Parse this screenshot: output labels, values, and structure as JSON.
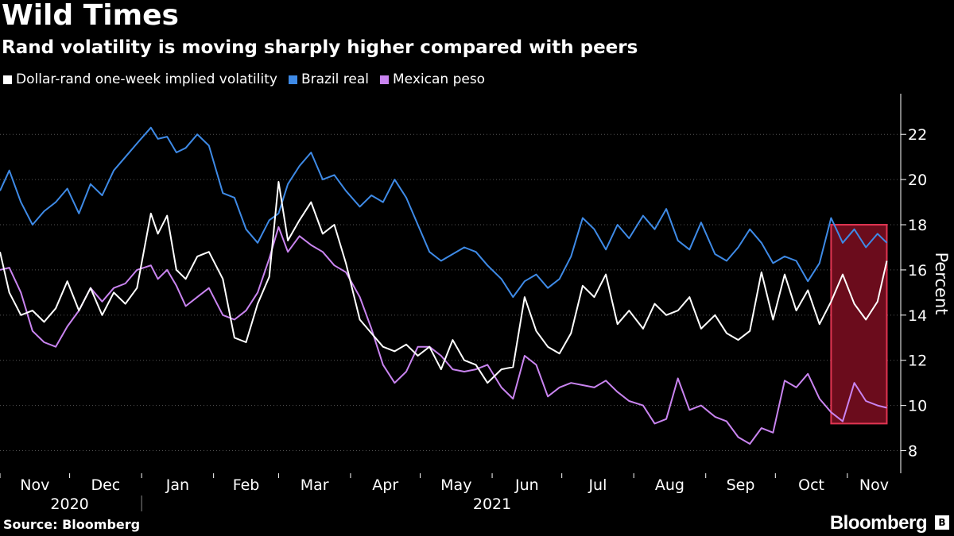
{
  "title": "Wild Times",
  "subtitle": "Rand volatility is moving sharply higher compared with peers",
  "source": "Source: Bloomberg",
  "brand": "Bloomberg",
  "chart_data": {
    "type": "line",
    "ylabel": "Percent",
    "ylim": [
      7,
      23.8
    ],
    "yticks": [
      8,
      10,
      12,
      14,
      16,
      18,
      20,
      22
    ],
    "y_axis_side": "right",
    "grid": "horizontal dashed",
    "legend_placement": "top-left",
    "x_range": [
      "2020-11-01",
      "2021-11-24"
    ],
    "months": [
      {
        "label": "Nov",
        "start": "2020-11-01"
      },
      {
        "label": "Dec",
        "start": "2020-12-01"
      },
      {
        "label": "Jan",
        "start": "2021-01-01"
      },
      {
        "label": "Feb",
        "start": "2021-02-01"
      },
      {
        "label": "Mar",
        "start": "2021-03-01"
      },
      {
        "label": "Apr",
        "start": "2021-04-01"
      },
      {
        "label": "May",
        "start": "2021-05-01"
      },
      {
        "label": "Jun",
        "start": "2021-06-01"
      },
      {
        "label": "Jul",
        "start": "2021-07-01"
      },
      {
        "label": "Aug",
        "start": "2021-08-01"
      },
      {
        "label": "Sep",
        "start": "2021-09-01"
      },
      {
        "label": "Oct",
        "start": "2021-10-01"
      },
      {
        "label": "Nov",
        "start": "2021-11-01"
      }
    ],
    "years": [
      {
        "label": "2020",
        "center": "2020-12-01"
      },
      {
        "label": "2021",
        "center": "2021-06-01"
      }
    ],
    "highlight": {
      "x0": "2021-10-25",
      "x1": "2021-11-18",
      "y0": 9.2,
      "y1": 18.0
    },
    "series": [
      {
        "name": "Dollar-rand one-week implied volatility",
        "color": "#ffffff",
        "x": [
          "2020-11-01",
          "2020-11-05",
          "2020-11-10",
          "2020-11-15",
          "2020-11-20",
          "2020-11-25",
          "2020-11-30",
          "2020-12-05",
          "2020-12-10",
          "2020-12-15",
          "2020-12-20",
          "2020-12-25",
          "2020-12-30",
          "2021-01-05",
          "2021-01-08",
          "2021-01-12",
          "2021-01-16",
          "2021-01-20",
          "2021-01-25",
          "2021-01-30",
          "2021-02-05",
          "2021-02-10",
          "2021-02-15",
          "2021-02-20",
          "2021-02-25",
          "2021-03-01",
          "2021-03-05",
          "2021-03-10",
          "2021-03-15",
          "2021-03-20",
          "2021-03-25",
          "2021-03-30",
          "2021-04-05",
          "2021-04-10",
          "2021-04-15",
          "2021-04-20",
          "2021-04-25",
          "2021-04-30",
          "2021-05-05",
          "2021-05-10",
          "2021-05-15",
          "2021-05-20",
          "2021-05-25",
          "2021-05-30",
          "2021-06-05",
          "2021-06-10",
          "2021-06-15",
          "2021-06-20",
          "2021-06-25",
          "2021-06-30",
          "2021-07-05",
          "2021-07-10",
          "2021-07-15",
          "2021-07-20",
          "2021-07-25",
          "2021-07-30",
          "2021-08-05",
          "2021-08-10",
          "2021-08-15",
          "2021-08-20",
          "2021-08-25",
          "2021-08-30",
          "2021-09-05",
          "2021-09-10",
          "2021-09-15",
          "2021-09-20",
          "2021-09-25",
          "2021-09-30",
          "2021-10-05",
          "2021-10-10",
          "2021-10-15",
          "2021-10-20",
          "2021-10-25",
          "2021-10-30",
          "2021-11-04",
          "2021-11-09",
          "2021-11-14",
          "2021-11-18"
        ],
        "values": [
          16.8,
          15.0,
          14.0,
          14.2,
          13.7,
          14.3,
          15.5,
          14.2,
          15.2,
          14.0,
          15.0,
          14.5,
          15.2,
          18.5,
          17.6,
          18.4,
          16.0,
          15.6,
          16.6,
          16.8,
          15.6,
          13.0,
          12.8,
          14.5,
          15.7,
          19.9,
          17.3,
          18.2,
          19.0,
          17.6,
          18.0,
          16.3,
          13.8,
          13.2,
          12.6,
          12.4,
          12.7,
          12.2,
          12.6,
          11.6,
          12.9,
          12.0,
          11.8,
          11.0,
          11.6,
          11.7,
          14.8,
          13.3,
          12.6,
          12.3,
          13.2,
          15.3,
          14.8,
          15.8,
          13.6,
          14.2,
          13.4,
          14.5,
          14.0,
          14.2,
          14.8,
          13.4,
          14.0,
          13.2,
          12.9,
          13.3,
          15.9,
          13.8,
          15.8,
          14.2,
          15.1,
          13.6,
          14.6,
          15.8,
          14.5,
          13.8,
          14.6,
          16.4
        ]
      },
      {
        "name": "Brazil real",
        "color": "#3e8ae6",
        "x": [
          "2020-11-01",
          "2020-11-05",
          "2020-11-10",
          "2020-11-15",
          "2020-11-20",
          "2020-11-25",
          "2020-11-30",
          "2020-12-05",
          "2020-12-10",
          "2020-12-15",
          "2020-12-20",
          "2020-12-25",
          "2020-12-30",
          "2021-01-05",
          "2021-01-08",
          "2021-01-12",
          "2021-01-16",
          "2021-01-20",
          "2021-01-25",
          "2021-01-30",
          "2021-02-05",
          "2021-02-10",
          "2021-02-15",
          "2021-02-20",
          "2021-02-25",
          "2021-03-01",
          "2021-03-05",
          "2021-03-10",
          "2021-03-15",
          "2021-03-20",
          "2021-03-25",
          "2021-03-30",
          "2021-04-05",
          "2021-04-10",
          "2021-04-15",
          "2021-04-20",
          "2021-04-25",
          "2021-04-30",
          "2021-05-05",
          "2021-05-10",
          "2021-05-15",
          "2021-05-20",
          "2021-05-25",
          "2021-05-30",
          "2021-06-05",
          "2021-06-10",
          "2021-06-15",
          "2021-06-20",
          "2021-06-25",
          "2021-06-30",
          "2021-07-05",
          "2021-07-10",
          "2021-07-15",
          "2021-07-20",
          "2021-07-25",
          "2021-07-30",
          "2021-08-05",
          "2021-08-10",
          "2021-08-15",
          "2021-08-20",
          "2021-08-25",
          "2021-08-30",
          "2021-09-05",
          "2021-09-10",
          "2021-09-15",
          "2021-09-20",
          "2021-09-25",
          "2021-09-30",
          "2021-10-05",
          "2021-10-10",
          "2021-10-15",
          "2021-10-20",
          "2021-10-25",
          "2021-10-30",
          "2021-11-04",
          "2021-11-09",
          "2021-11-14",
          "2021-11-18"
        ],
        "values": [
          19.5,
          20.4,
          19.0,
          18.0,
          18.6,
          19.0,
          19.6,
          18.5,
          19.8,
          19.3,
          20.4,
          21.0,
          21.6,
          22.3,
          21.8,
          21.9,
          21.2,
          21.4,
          22.0,
          21.5,
          19.4,
          19.2,
          17.8,
          17.2,
          18.2,
          18.5,
          19.8,
          20.6,
          21.2,
          20.0,
          20.2,
          19.5,
          18.8,
          19.3,
          19.0,
          20.0,
          19.2,
          18.0,
          16.8,
          16.4,
          16.7,
          17.0,
          16.8,
          16.2,
          15.6,
          14.8,
          15.5,
          15.8,
          15.2,
          15.6,
          16.6,
          18.3,
          17.8,
          16.9,
          18.0,
          17.4,
          18.4,
          17.8,
          18.7,
          17.3,
          16.9,
          18.1,
          16.7,
          16.4,
          17.0,
          17.8,
          17.2,
          16.3,
          16.6,
          16.4,
          15.5,
          16.3,
          18.3,
          17.2,
          17.8,
          17.0,
          17.6,
          17.2
        ]
      },
      {
        "name": "Mexican peso",
        "color": "#c984f0",
        "x": [
          "2020-11-01",
          "2020-11-05",
          "2020-11-10",
          "2020-11-15",
          "2020-11-20",
          "2020-11-25",
          "2020-11-30",
          "2020-12-05",
          "2020-12-10",
          "2020-12-15",
          "2020-12-20",
          "2020-12-25",
          "2020-12-30",
          "2021-01-05",
          "2021-01-08",
          "2021-01-12",
          "2021-01-16",
          "2021-01-20",
          "2021-01-25",
          "2021-01-30",
          "2021-02-05",
          "2021-02-10",
          "2021-02-15",
          "2021-02-20",
          "2021-02-25",
          "2021-03-01",
          "2021-03-05",
          "2021-03-10",
          "2021-03-15",
          "2021-03-20",
          "2021-03-25",
          "2021-03-30",
          "2021-04-05",
          "2021-04-10",
          "2021-04-15",
          "2021-04-20",
          "2021-04-25",
          "2021-04-30",
          "2021-05-05",
          "2021-05-10",
          "2021-05-15",
          "2021-05-20",
          "2021-05-25",
          "2021-05-30",
          "2021-06-05",
          "2021-06-10",
          "2021-06-15",
          "2021-06-20",
          "2021-06-25",
          "2021-06-30",
          "2021-07-05",
          "2021-07-10",
          "2021-07-15",
          "2021-07-20",
          "2021-07-25",
          "2021-07-30",
          "2021-08-05",
          "2021-08-10",
          "2021-08-15",
          "2021-08-20",
          "2021-08-25",
          "2021-08-30",
          "2021-09-05",
          "2021-09-10",
          "2021-09-15",
          "2021-09-20",
          "2021-09-25",
          "2021-09-30",
          "2021-10-05",
          "2021-10-10",
          "2021-10-15",
          "2021-10-20",
          "2021-10-25",
          "2021-10-30",
          "2021-11-04",
          "2021-11-09",
          "2021-11-14",
          "2021-11-18"
        ],
        "values": [
          16.0,
          16.1,
          15.0,
          13.3,
          12.8,
          12.6,
          13.5,
          14.2,
          15.2,
          14.6,
          15.2,
          15.4,
          16.0,
          16.2,
          15.6,
          16.0,
          15.3,
          14.4,
          14.8,
          15.2,
          14.0,
          13.8,
          14.2,
          15.0,
          16.5,
          17.9,
          16.8,
          17.5,
          17.1,
          16.8,
          16.2,
          15.9,
          14.8,
          13.4,
          11.8,
          11.0,
          11.5,
          12.6,
          12.6,
          12.2,
          11.6,
          11.5,
          11.6,
          11.8,
          10.8,
          10.3,
          12.2,
          11.8,
          10.4,
          10.8,
          11.0,
          10.9,
          10.8,
          11.1,
          10.6,
          10.2,
          10.0,
          9.2,
          9.4,
          11.2,
          9.8,
          10.0,
          9.5,
          9.3,
          8.6,
          8.3,
          9.0,
          8.8,
          11.1,
          10.8,
          11.4,
          10.3,
          9.7,
          9.3,
          11.0,
          10.2,
          10.0,
          9.9
        ]
      }
    ]
  }
}
